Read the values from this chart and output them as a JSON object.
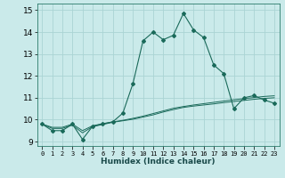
{
  "xlabel": "Humidex (Indice chaleur)",
  "ylabel": "",
  "background_color": "#caeaea",
  "grid_color": "#aad4d4",
  "line_color": "#1a6a5a",
  "xlim": [
    -0.5,
    23.5
  ],
  "ylim": [
    8.8,
    15.3
  ],
  "yticks": [
    9,
    10,
    11,
    12,
    13,
    14,
    15
  ],
  "xticks": [
    0,
    1,
    2,
    3,
    4,
    5,
    6,
    7,
    8,
    9,
    10,
    11,
    12,
    13,
    14,
    15,
    16,
    17,
    18,
    19,
    20,
    21,
    22,
    23
  ],
  "series": [
    [
      9.8,
      9.5,
      9.5,
      9.8,
      9.1,
      9.7,
      9.8,
      9.9,
      10.3,
      11.65,
      13.6,
      14.0,
      13.65,
      13.85,
      14.85,
      14.1,
      13.75,
      12.5,
      12.1,
      10.5,
      11.0,
      11.1,
      10.9,
      10.75
    ],
    [
      9.8,
      9.6,
      9.6,
      9.75,
      9.4,
      9.68,
      9.78,
      9.88,
      9.95,
      10.02,
      10.12,
      10.22,
      10.35,
      10.46,
      10.56,
      10.62,
      10.67,
      10.72,
      10.78,
      10.83,
      10.88,
      10.93,
      10.97,
      11.0
    ],
    [
      9.8,
      9.65,
      9.65,
      9.8,
      9.5,
      9.72,
      9.82,
      9.9,
      9.97,
      10.06,
      10.16,
      10.28,
      10.4,
      10.52,
      10.6,
      10.67,
      10.73,
      10.79,
      10.85,
      10.91,
      10.96,
      11.01,
      11.06,
      11.09
    ]
  ]
}
